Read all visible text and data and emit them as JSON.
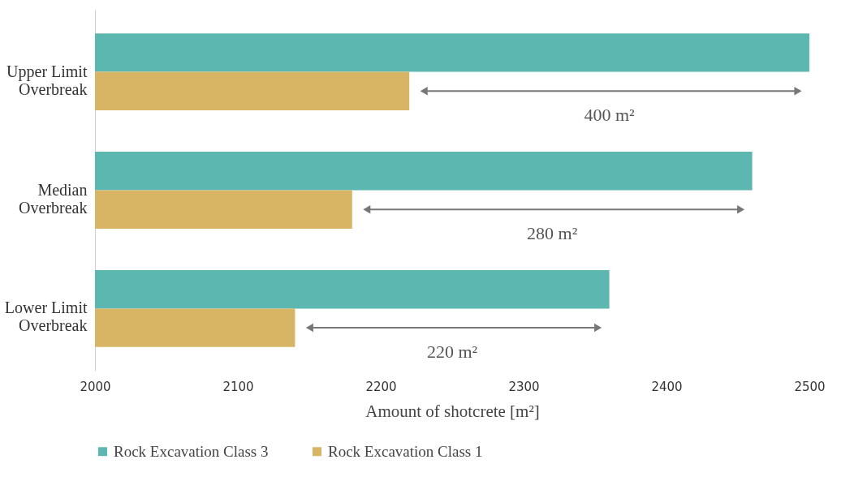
{
  "chart_data": {
    "type": "bar",
    "orientation": "horizontal",
    "categories": [
      "Upper Limit\nOverbreak",
      "Median\nOverbreak",
      "Lower Limit\nOverbreak"
    ],
    "series": [
      {
        "name": "Rock Excavation Class 3",
        "color": "#5bb7b0",
        "values": [
          2500,
          2460,
          2360
        ]
      },
      {
        "name": "Rock Excavation Class 1",
        "color": "#d8b465",
        "values": [
          2220,
          2180,
          2140
        ]
      }
    ],
    "xlabel": "Amount of shotcrete [m²]",
    "xlim": [
      2000,
      2500
    ],
    "xticks": [
      2000,
      2100,
      2200,
      2300,
      2400,
      2500
    ],
    "annotations": [
      "400 m²",
      "280 m²",
      "220 m²"
    ],
    "grid": false,
    "legend": "bottom"
  }
}
